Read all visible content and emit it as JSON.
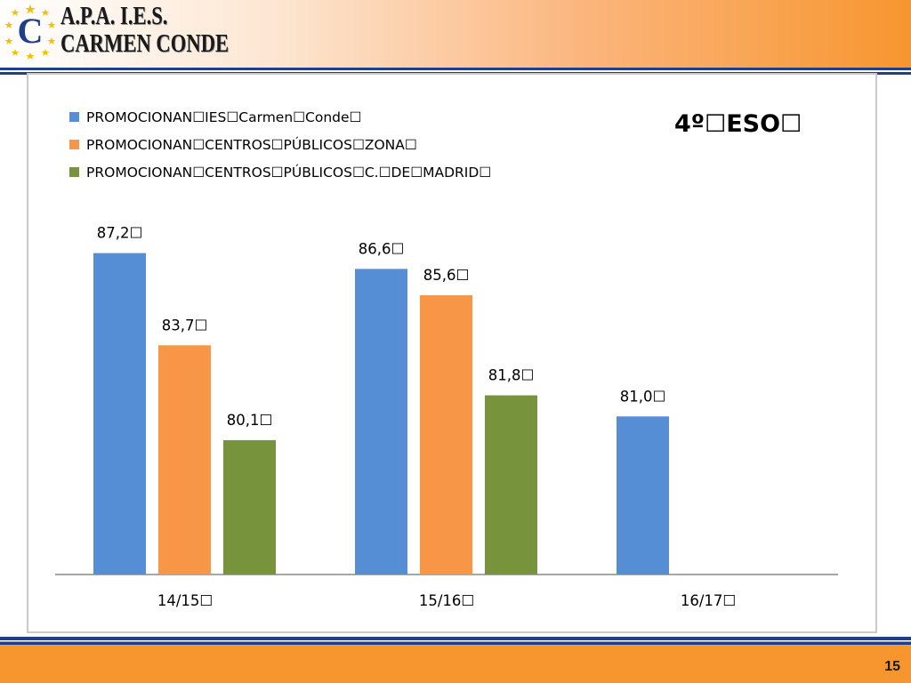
{
  "header": {
    "brand_line1": "A.P.A.  I.E.S.",
    "brand_line2": "CARMEN CONDE",
    "logo_letter": "C"
  },
  "page_number": "15",
  "colors": {
    "header_orange": "#f7962f",
    "navy": "#1f3f8a",
    "series_blue": "#558ed5",
    "series_orange": "#f79646",
    "series_green": "#77933c"
  },
  "chart_data": {
    "type": "bar",
    "title": "4º☐ESO☐",
    "categories": [
      "14/15☐",
      "15/16☐",
      "16/17☐"
    ],
    "series": [
      {
        "name": "PROMOCIONAN☐IES☐Carmen☐Conde☐",
        "color": "#558ed5",
        "values": [
          87.2,
          86.6,
          81.0
        ],
        "labels": [
          "87,2☐",
          "86,6☐",
          "81,0☐"
        ]
      },
      {
        "name": "PROMOCIONAN☐CENTROS☐PÚBLICOS☐ZONA☐",
        "color": "#f79646",
        "values": [
          83.7,
          85.6,
          null
        ],
        "labels": [
          "83,7☐",
          "85,6☐",
          ""
        ]
      },
      {
        "name": "PROMOCIONAN☐CENTROS☐PÚBLICOS☐C.☐DE☐MADRID☐",
        "color": "#77933c",
        "values": [
          80.1,
          81.8,
          null
        ],
        "labels": [
          "80,1☐",
          "81,8☐",
          ""
        ]
      }
    ],
    "ylim": [
      75,
      88.3
    ],
    "grid": false,
    "legend_position": "top-left"
  }
}
